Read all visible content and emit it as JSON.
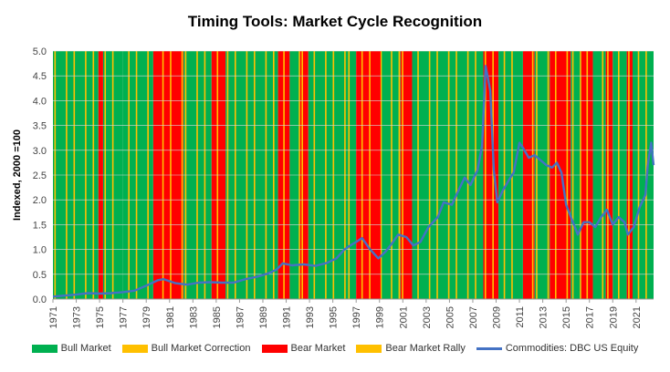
{
  "chart_data": {
    "type": "area",
    "title": "Timing Tools: Market Cycle Recognition",
    "ylabel": "Indexed, 2000 =100",
    "xlabel": "",
    "ylim": [
      0,
      5
    ],
    "xlim": [
      1971,
      2022.5
    ],
    "y_ticks": [
      "0.0",
      "0.5",
      "1.0",
      "1.5",
      "2.0",
      "2.5",
      "3.0",
      "3.5",
      "4.0",
      "4.5",
      "5.0"
    ],
    "x_ticks": [
      "1971",
      "1973",
      "1975",
      "1977",
      "1979",
      "1981",
      "1983",
      "1985",
      "1987",
      "1989",
      "1991",
      "1993",
      "1995",
      "1997",
      "1999",
      "2001",
      "2003",
      "2005",
      "2007",
      "2009",
      "2011",
      "2013",
      "2015",
      "2017",
      "2019",
      "2021"
    ],
    "legend_position": "bottom",
    "regime_colors": {
      "bull": "#00B050",
      "bull_correction": "#FFC000",
      "bear": "#FF0000",
      "bear_rally": "#FFC000"
    },
    "legend": [
      {
        "label": "Bull Market",
        "kind": "swatch",
        "color": "#00B050"
      },
      {
        "label": "Bull Market Correction",
        "kind": "swatch",
        "color": "#FFC000"
      },
      {
        "label": "Bear Market",
        "kind": "swatch",
        "color": "#FF0000"
      },
      {
        "label": "Bear Market Rally",
        "kind": "swatch",
        "color": "#FFC000"
      },
      {
        "label": "Commodities: DBC US Equity",
        "kind": "line",
        "color": "#4472C4"
      }
    ],
    "regimes": [
      {
        "start": 1971.0,
        "end": 1974.9,
        "regime": "bull"
      },
      {
        "start": 1974.9,
        "end": 1975.3,
        "regime": "bear"
      },
      {
        "start": 1975.3,
        "end": 1977.0,
        "regime": "bull"
      },
      {
        "start": 1977.0,
        "end": 1979.6,
        "regime": "bull"
      },
      {
        "start": 1979.6,
        "end": 1982.2,
        "regime": "bear"
      },
      {
        "start": 1982.2,
        "end": 1984.6,
        "regime": "bull"
      },
      {
        "start": 1984.6,
        "end": 1985.8,
        "regime": "bear"
      },
      {
        "start": 1985.8,
        "end": 1990.3,
        "regime": "bull"
      },
      {
        "start": 1990.3,
        "end": 1991.3,
        "regime": "bear"
      },
      {
        "start": 1991.3,
        "end": 1992.2,
        "regime": "bull"
      },
      {
        "start": 1992.2,
        "end": 1992.9,
        "regime": "bear"
      },
      {
        "start": 1992.9,
        "end": 1996.2,
        "regime": "bull"
      },
      {
        "start": 1996.2,
        "end": 1997.0,
        "regime": "bull"
      },
      {
        "start": 1997.0,
        "end": 1999.2,
        "regime": "bear"
      },
      {
        "start": 1999.2,
        "end": 2000.8,
        "regime": "bull"
      },
      {
        "start": 2000.8,
        "end": 2001.8,
        "regime": "bear"
      },
      {
        "start": 2001.8,
        "end": 2007.9,
        "regime": "bull"
      },
      {
        "start": 2007.9,
        "end": 2009.2,
        "regime": "bear"
      },
      {
        "start": 2009.2,
        "end": 2011.3,
        "regime": "bull"
      },
      {
        "start": 2011.3,
        "end": 2012.3,
        "regime": "bear"
      },
      {
        "start": 2012.3,
        "end": 2013.6,
        "regime": "bull"
      },
      {
        "start": 2013.6,
        "end": 2015.4,
        "regime": "bear"
      },
      {
        "start": 2015.4,
        "end": 2016.3,
        "regime": "bull"
      },
      {
        "start": 2016.3,
        "end": 2017.3,
        "regime": "bear"
      },
      {
        "start": 2017.3,
        "end": 2018.4,
        "regime": "bull"
      },
      {
        "start": 2018.4,
        "end": 2019.0,
        "regime": "bear"
      },
      {
        "start": 2019.0,
        "end": 2020.2,
        "regime": "bull"
      },
      {
        "start": 2020.2,
        "end": 2020.7,
        "regime": "bear"
      },
      {
        "start": 2020.7,
        "end": 2022.5,
        "regime": "bull"
      }
    ],
    "series": [
      {
        "name": "Commodities: DBC US Equity",
        "color": "#4472C4",
        "x": [
          1971.0,
          1972.0,
          1973.0,
          1974.0,
          1975.0,
          1976.0,
          1977.0,
          1978.0,
          1979.0,
          1980.0,
          1980.5,
          1981.5,
          1982.5,
          1983.5,
          1984.5,
          1985.5,
          1986.5,
          1987.5,
          1988.5,
          1989.5,
          1990.2,
          1990.7,
          1991.5,
          1992.5,
          1993.5,
          1994.5,
          1995.3,
          1996.0,
          1996.5,
          1997.0,
          1997.5,
          1998.2,
          1998.9,
          1999.5,
          2000.0,
          2000.6,
          2001.3,
          2001.9,
          2002.5,
          2003.2,
          2004.0,
          2004.5,
          2005.2,
          2005.8,
          2006.3,
          2006.8,
          2007.4,
          2007.8,
          2008.1,
          2008.5,
          2008.8,
          2009.1,
          2009.6,
          2010.1,
          2010.5,
          2011.0,
          2011.3,
          2011.8,
          2012.3,
          2012.8,
          2013.3,
          2013.8,
          2014.2,
          2014.6,
          2015.0,
          2015.5,
          2016.0,
          2016.5,
          2017.0,
          2017.5,
          2018.0,
          2018.5,
          2019.0,
          2019.5,
          2020.0,
          2020.3,
          2020.8,
          2021.3,
          2021.8,
          2022.0,
          2022.3,
          2022.5
        ],
        "y": [
          0.05,
          0.07,
          0.09,
          0.12,
          0.11,
          0.12,
          0.14,
          0.17,
          0.27,
          0.38,
          0.4,
          0.32,
          0.29,
          0.33,
          0.34,
          0.33,
          0.33,
          0.4,
          0.45,
          0.52,
          0.6,
          0.72,
          0.68,
          0.7,
          0.67,
          0.73,
          0.82,
          1.0,
          1.08,
          1.15,
          1.23,
          1.0,
          0.82,
          0.95,
          1.1,
          1.3,
          1.25,
          1.08,
          1.15,
          1.45,
          1.65,
          1.95,
          1.9,
          2.2,
          2.45,
          2.3,
          2.6,
          3.1,
          4.7,
          4.2,
          2.6,
          1.95,
          2.2,
          2.4,
          2.55,
          3.15,
          3.05,
          2.85,
          2.9,
          2.8,
          2.7,
          2.65,
          2.75,
          2.55,
          1.9,
          1.6,
          1.3,
          1.55,
          1.55,
          1.45,
          1.65,
          1.8,
          1.5,
          1.65,
          1.55,
          1.3,
          1.45,
          1.85,
          2.1,
          2.7,
          3.15,
          2.7
        ]
      }
    ]
  }
}
